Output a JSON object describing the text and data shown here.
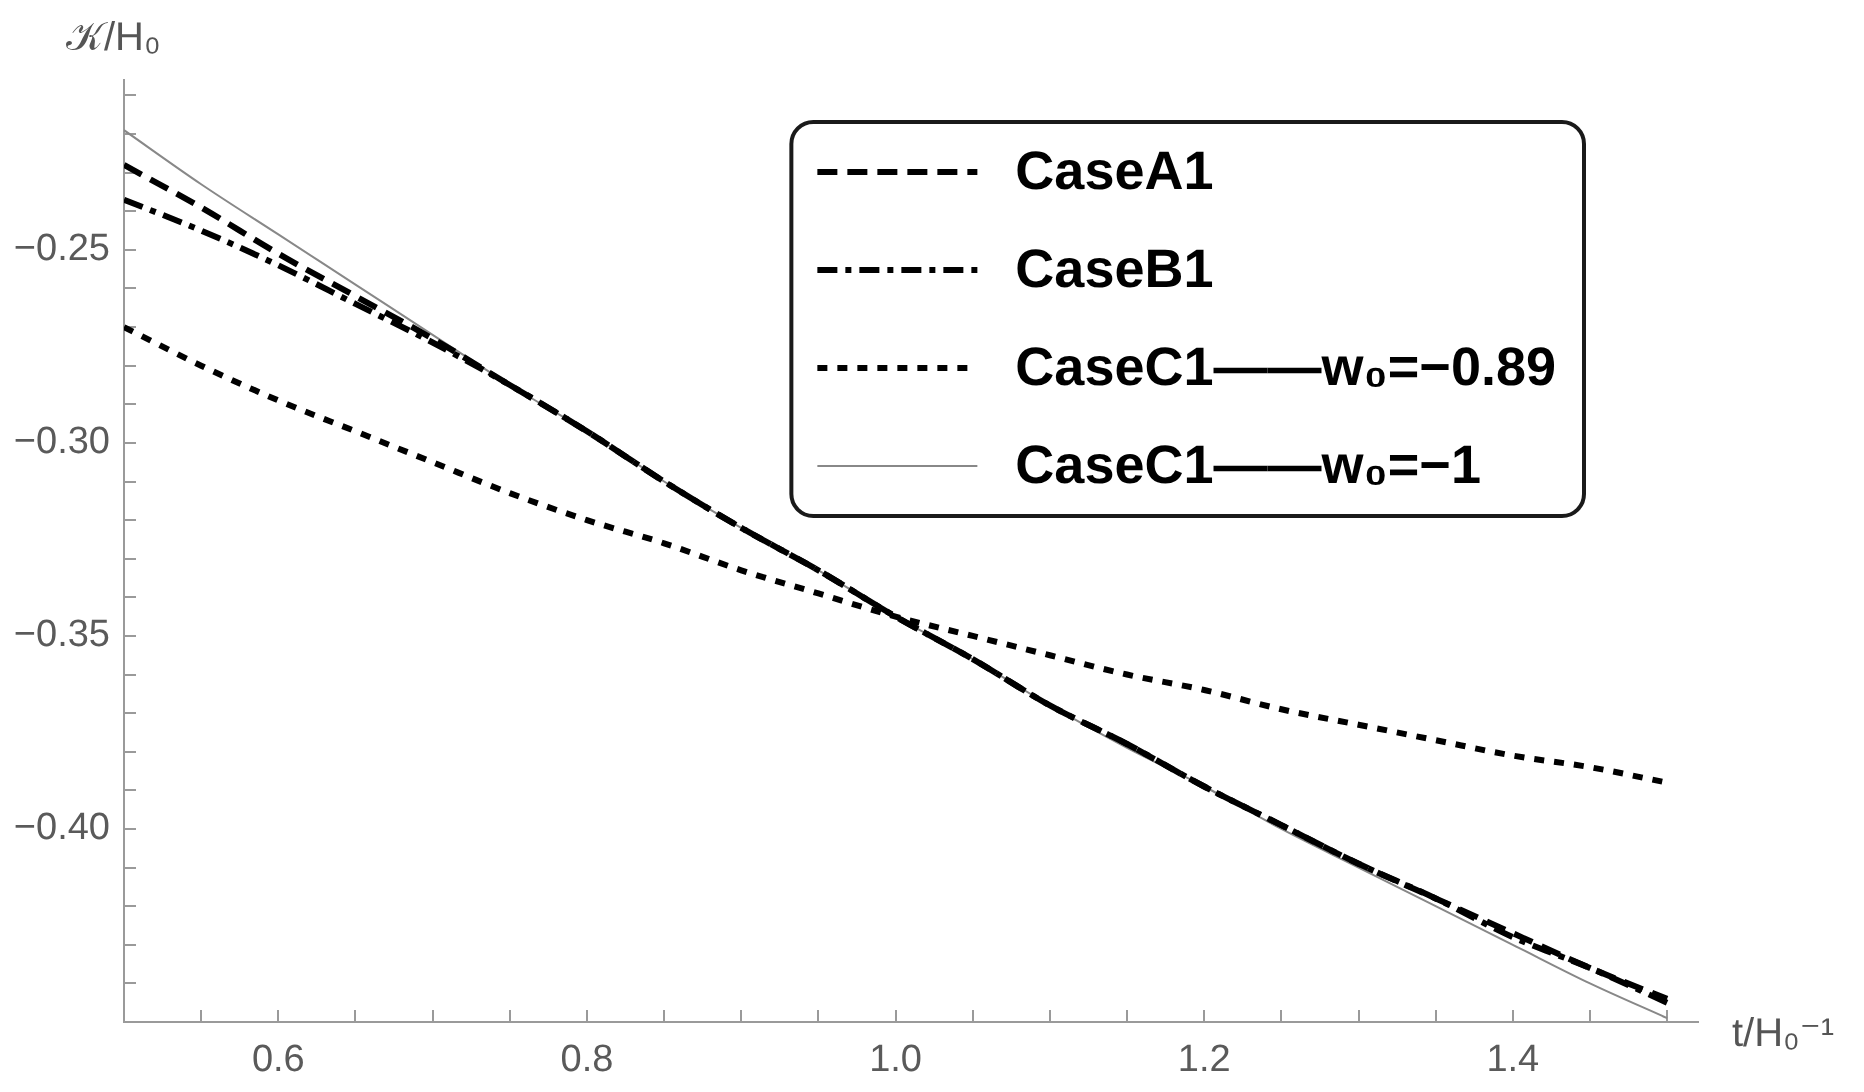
{
  "chart_data": {
    "type": "line",
    "xlabel": "t/H₀⁻¹",
    "ylabel": "𝒦/H₀",
    "x": [
      0.5,
      0.55,
      0.6,
      0.65,
      0.7,
      0.75,
      0.8,
      0.85,
      0.9,
      0.95,
      1,
      1.05,
      1.1,
      1.15,
      1.2,
      1.25,
      1.3,
      1.35,
      1.4,
      1.45,
      1.5
    ],
    "series": [
      {
        "name": "CaseA1",
        "color": "#000000",
        "line_style": "dashed",
        "values": [
          -0.228,
          -0.239,
          -0.251,
          -0.262,
          -0.273,
          -0.285,
          -0.297,
          -0.31,
          -0.322,
          -0.333,
          -0.345,
          -0.356,
          -0.368,
          -0.378,
          -0.389,
          -0.399,
          -0.409,
          -0.418,
          -0.427,
          -0.436,
          -0.444
        ]
      },
      {
        "name": "CaseB1",
        "color": "#000000",
        "line_style": "dashdot",
        "values": [
          -0.237,
          -0.245,
          -0.254,
          -0.264,
          -0.274,
          -0.285,
          -0.297,
          -0.31,
          -0.322,
          -0.333,
          -0.345,
          -0.356,
          -0.368,
          -0.378,
          -0.389,
          -0.399,
          -0.409,
          -0.418,
          -0.428,
          -0.436,
          -0.445
        ]
      },
      {
        "name": "CaseC1——w₀=−0.89",
        "color": "#000000",
        "line_style": "dotted",
        "values": [
          -0.27,
          -0.28,
          -0.289,
          -0.297,
          -0.305,
          -0.313,
          -0.32,
          -0.326,
          -0.333,
          -0.339,
          -0.345,
          -0.35,
          -0.355,
          -0.36,
          -0.364,
          -0.369,
          -0.373,
          -0.377,
          -0.381,
          -0.384,
          -0.388
        ]
      },
      {
        "name": "CaseC1——w₀=−1",
        "color": "#888888",
        "line_style": "solid",
        "values": [
          -0.219,
          -0.233,
          -0.246,
          -0.259,
          -0.272,
          -0.285,
          -0.297,
          -0.31,
          -0.322,
          -0.333,
          -0.345,
          -0.356,
          -0.368,
          -0.379,
          -0.389,
          -0.4,
          -0.41,
          -0.42,
          -0.43,
          -0.44,
          -0.449
        ]
      }
    ],
    "xlim": [
      0.5,
      1.52
    ],
    "ylim": [
      -0.45,
      -0.206
    ],
    "xticks": [
      {
        "value": 0.55,
        "label": null
      },
      0.6,
      {
        "value": 0.65,
        "label": null
      },
      {
        "value": 0.7,
        "label": null
      },
      {
        "value": 0.75,
        "label": null
      },
      0.8,
      {
        "value": 0.85,
        "label": null
      },
      {
        "value": 0.9,
        "label": null
      },
      {
        "value": 0.95,
        "label": null
      },
      {
        "value": 1,
        "label": "1.0"
      },
      {
        "value": 1.05,
        "label": null
      },
      {
        "value": 1.1,
        "label": null
      },
      {
        "value": 1.15,
        "label": null
      },
      1.2,
      {
        "value": 1.25,
        "label": null
      },
      {
        "value": 1.3,
        "label": null
      },
      {
        "value": 1.35,
        "label": null
      },
      1.4,
      {
        "value": 1.45,
        "label": null
      },
      {
        "value": 1.5,
        "label": null
      }
    ],
    "yticks": [
      {
        "value": -0.44,
        "label": null
      },
      {
        "value": -0.43,
        "label": null
      },
      {
        "value": -0.42,
        "label": null
      },
      {
        "value": -0.41,
        "label": null
      },
      {
        "value": -0.4,
        "label": "−0.40"
      },
      {
        "value": -0.39,
        "label": null
      },
      {
        "value": -0.38,
        "label": null
      },
      {
        "value": -0.37,
        "label": null
      },
      {
        "value": -0.36,
        "label": null
      },
      {
        "value": -0.35,
        "label": "−0.35"
      },
      {
        "value": -0.34,
        "label": null
      },
      {
        "value": -0.33,
        "label": null
      },
      {
        "value": -0.32,
        "label": null
      },
      {
        "value": -0.31,
        "label": null
      },
      {
        "value": -0.3,
        "label": "−0.30"
      },
      {
        "value": -0.29,
        "label": null
      },
      {
        "value": -0.28,
        "label": null
      },
      {
        "value": -0.27,
        "label": null
      },
      {
        "value": -0.26,
        "label": null
      },
      {
        "value": -0.25,
        "label": "−0.25"
      },
      {
        "value": -0.24,
        "label": null
      },
      {
        "value": -0.23,
        "label": null
      },
      {
        "value": -0.22,
        "label": null
      },
      {
        "value": -0.21,
        "label": null
      }
    ],
    "grid": false,
    "legend": "top right"
  }
}
